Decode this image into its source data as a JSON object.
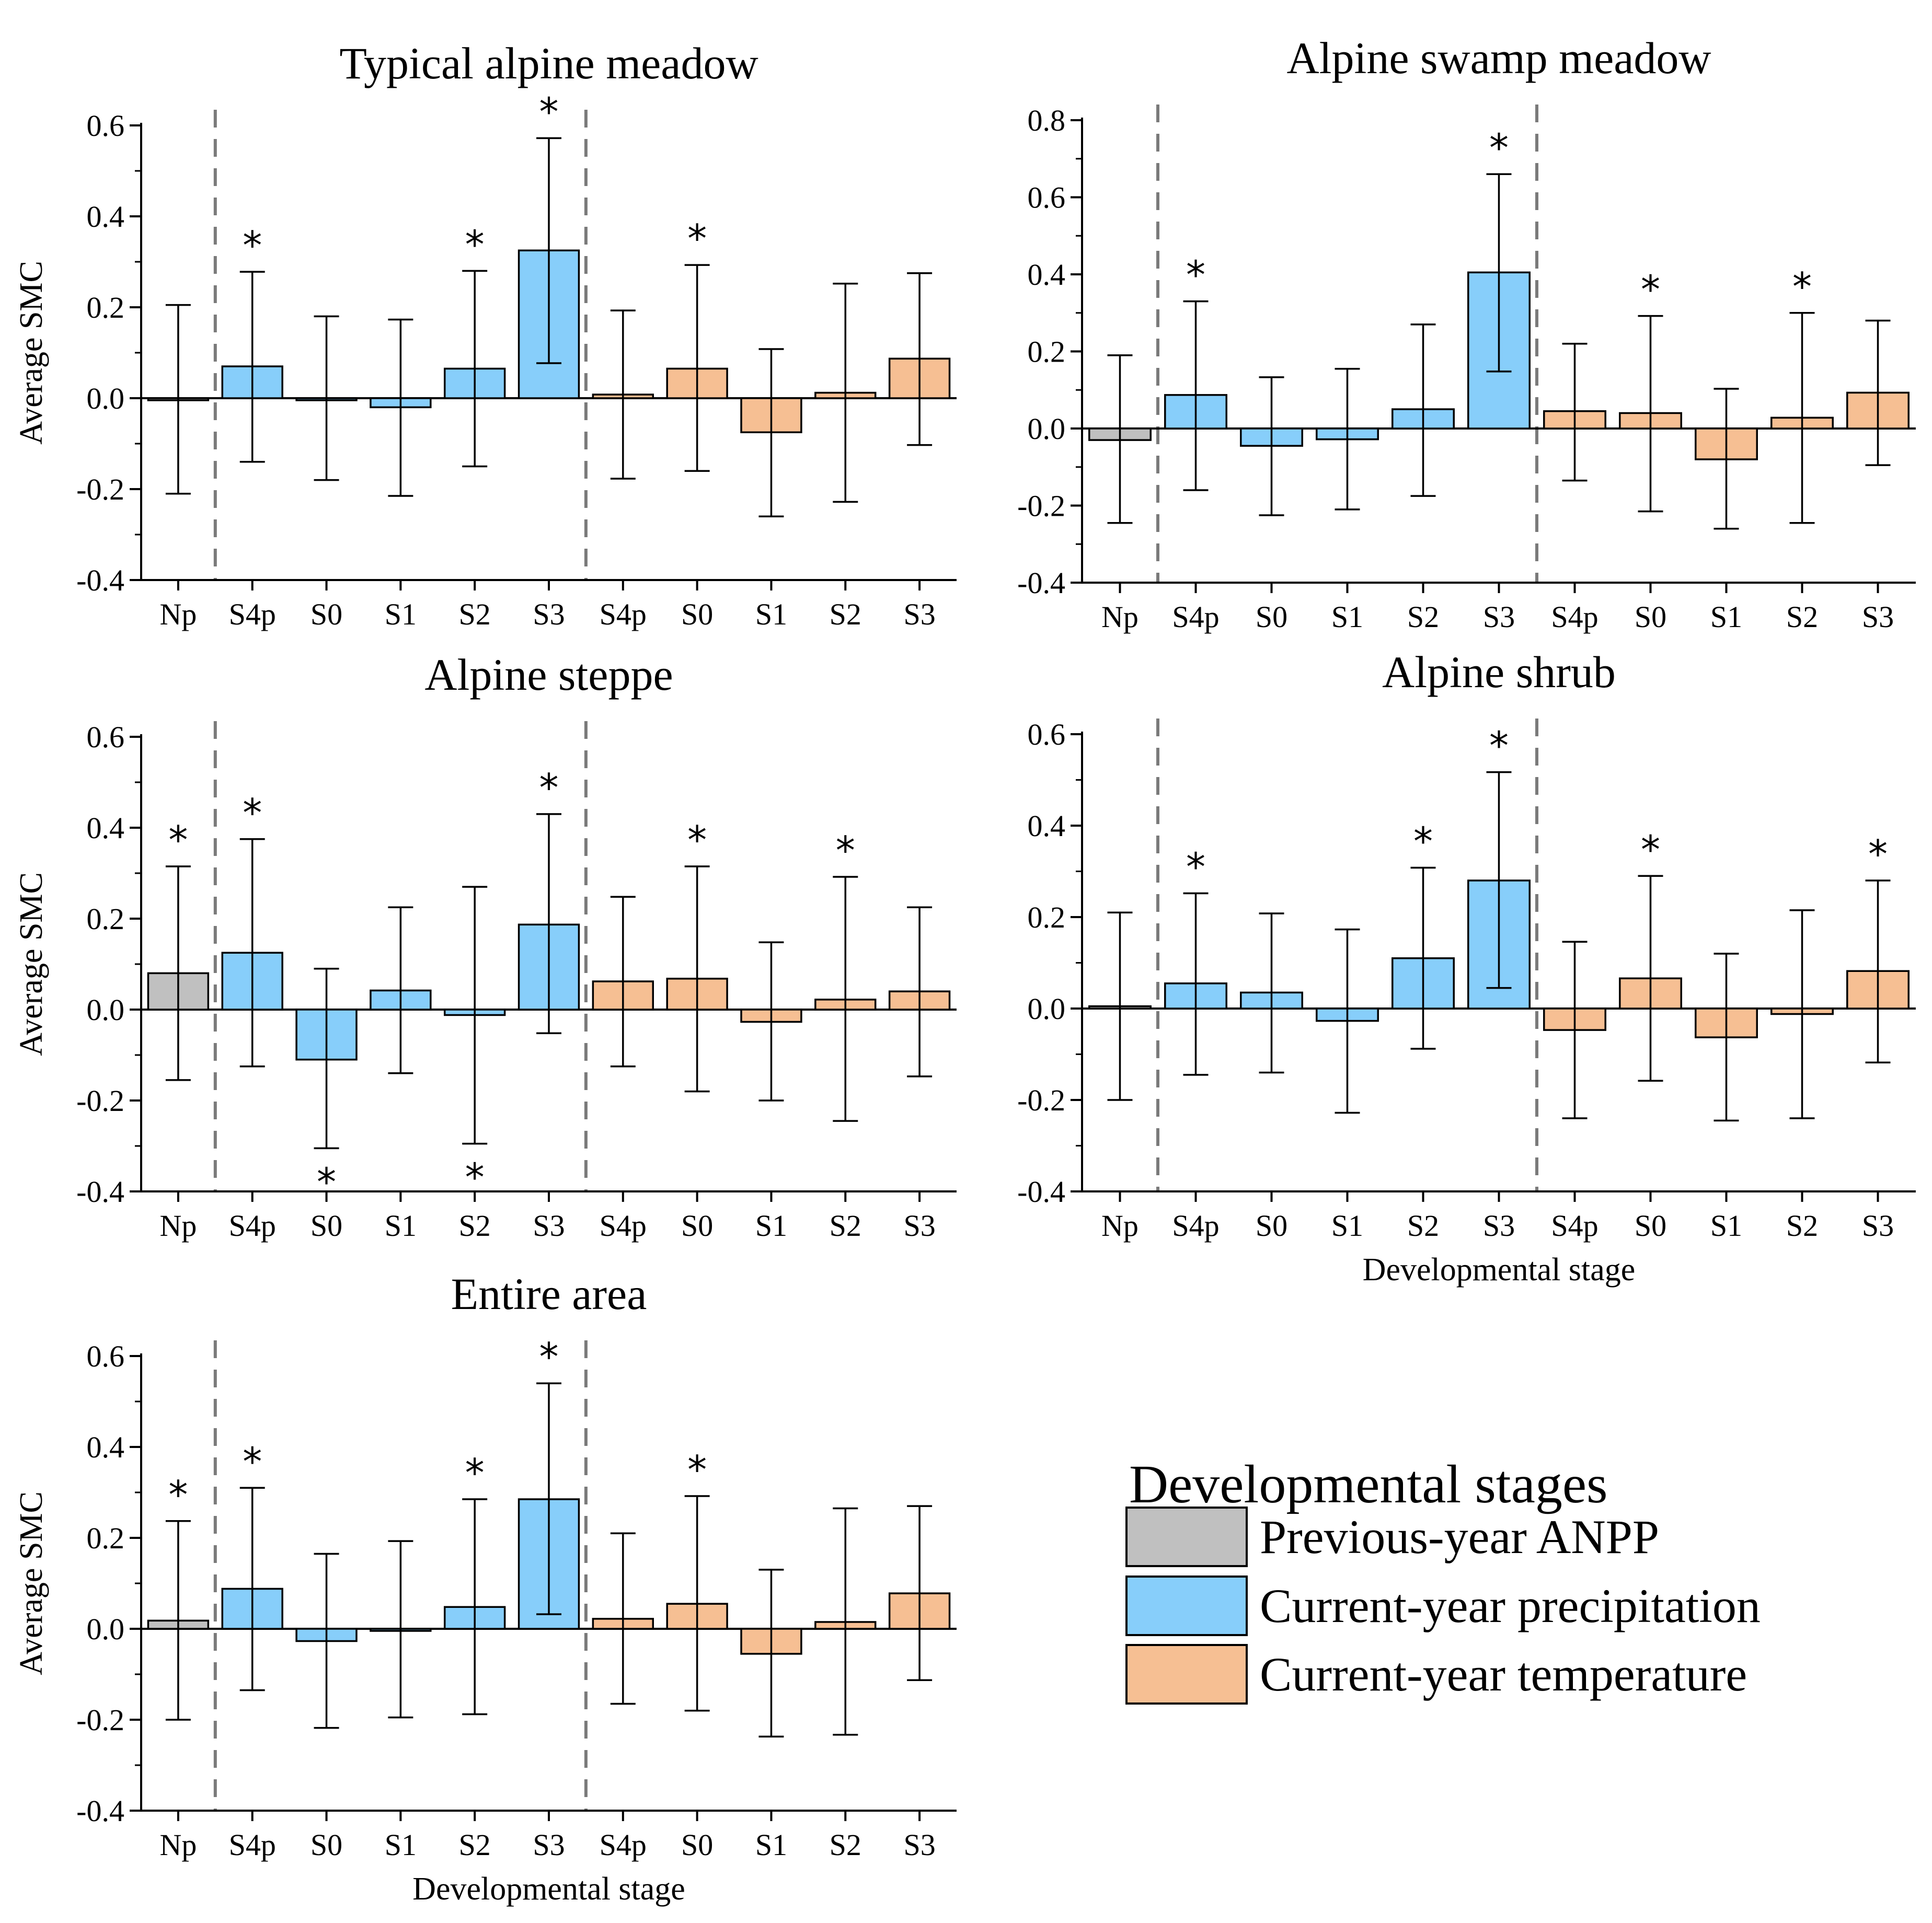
{
  "colors": {
    "previous_year": "#c0c0c0",
    "precipitation": "#87cefa",
    "temperature": "#f6bf93",
    "dashed_line": "#7a7a7a"
  },
  "legend": {
    "title": "Developmental stages",
    "items": [
      {
        "label": "Previous-year ANPP",
        "color": "#c0c0c0"
      },
      {
        "label": "Current-year precipitation",
        "color": "#87cefa"
      },
      {
        "label": "Current-year temperature",
        "color": "#f6bf93"
      }
    ]
  },
  "chart_data": [
    {
      "type": "bar",
      "title": "Typical alpine meadow",
      "ylabel": "Average SMC",
      "xlabel": "",
      "ylim": [
        -0.4,
        0.6
      ],
      "yticks": [
        "-0.4",
        "-0.2",
        "0.0",
        "0.2",
        "0.4",
        "0.6"
      ],
      "categories": [
        "Np",
        "S4p",
        "S0",
        "S1",
        "S2",
        "S3",
        "S4p",
        "S0",
        "S1",
        "S2",
        "S3"
      ],
      "groups": [
        "previous_year",
        "precipitation",
        "precipitation",
        "precipitation",
        "precipitation",
        "precipitation",
        "temperature",
        "temperature",
        "temperature",
        "temperature",
        "temperature"
      ],
      "values": [
        -0.003,
        0.07,
        -0.002,
        -0.02,
        0.065,
        0.325,
        0.008,
        0.065,
        -0.075,
        0.012,
        0.087
      ],
      "err_low": [
        -0.21,
        -0.14,
        -0.18,
        -0.215,
        -0.15,
        0.077,
        -0.177,
        -0.16,
        -0.26,
        -0.228,
        -0.103
      ],
      "err_high": [
        0.205,
        0.278,
        0.18,
        0.173,
        0.28,
        0.572,
        0.193,
        0.293,
        0.108,
        0.252,
        0.275
      ],
      "sig_top": [
        false,
        true,
        false,
        false,
        true,
        true,
        false,
        true,
        false,
        false,
        false
      ],
      "sig_bottom": [
        false,
        false,
        false,
        false,
        false,
        false,
        false,
        false,
        false,
        false,
        false
      ],
      "significance_marker": "*"
    },
    {
      "type": "bar",
      "title": "Alpine swamp meadow",
      "ylabel": "",
      "xlabel": "",
      "ylim": [
        -0.4,
        0.8
      ],
      "yticks": [
        "-0.4",
        "-0.2",
        "0.0",
        "0.2",
        "0.4",
        "0.6",
        "0.8"
      ],
      "categories": [
        "Np",
        "S4p",
        "S0",
        "S1",
        "S2",
        "S3",
        "S4p",
        "S0",
        "S1",
        "S2",
        "S3"
      ],
      "groups": [
        "previous_year",
        "precipitation",
        "precipitation",
        "precipitation",
        "precipitation",
        "precipitation",
        "temperature",
        "temperature",
        "temperature",
        "temperature",
        "temperature"
      ],
      "values": [
        -0.03,
        0.087,
        -0.045,
        -0.028,
        0.05,
        0.405,
        0.045,
        0.04,
        -0.08,
        0.028,
        0.093
      ],
      "err_low": [
        -0.245,
        -0.16,
        -0.225,
        -0.21,
        -0.175,
        0.148,
        -0.135,
        -0.215,
        -0.26,
        -0.245,
        -0.095
      ],
      "err_high": [
        0.19,
        0.33,
        0.133,
        0.155,
        0.27,
        0.66,
        0.22,
        0.292,
        0.103,
        0.3,
        0.28
      ],
      "sig_top": [
        false,
        true,
        false,
        false,
        false,
        true,
        false,
        true,
        false,
        true,
        false
      ],
      "sig_bottom": [
        false,
        false,
        false,
        false,
        false,
        false,
        false,
        false,
        false,
        false,
        false
      ],
      "significance_marker": "*"
    },
    {
      "type": "bar",
      "title": "Alpine steppe",
      "ylabel": "Average SMC",
      "xlabel": "",
      "ylim": [
        -0.4,
        0.6
      ],
      "yticks": [
        "-0.4",
        "-0.2",
        "0.0",
        "0.2",
        "0.4",
        "0.6"
      ],
      "categories": [
        "Np",
        "S4p",
        "S0",
        "S1",
        "S2",
        "S3",
        "S4p",
        "S0",
        "S1",
        "S2",
        "S3"
      ],
      "groups": [
        "previous_year",
        "precipitation",
        "precipitation",
        "precipitation",
        "precipitation",
        "precipitation",
        "temperature",
        "temperature",
        "temperature",
        "temperature",
        "temperature"
      ],
      "values": [
        0.08,
        0.125,
        -0.11,
        0.042,
        -0.012,
        0.187,
        0.062,
        0.068,
        -0.027,
        0.022,
        0.04
      ],
      "err_low": [
        -0.155,
        -0.125,
        -0.305,
        -0.14,
        -0.295,
        -0.052,
        -0.125,
        -0.18,
        -0.2,
        -0.245,
        -0.147
      ],
      "err_high": [
        0.315,
        0.375,
        0.09,
        0.225,
        0.27,
        0.43,
        0.248,
        0.315,
        0.148,
        0.292,
        0.225
      ],
      "sig_top": [
        true,
        true,
        false,
        false,
        false,
        true,
        false,
        true,
        false,
        true,
        false
      ],
      "sig_bottom": [
        false,
        false,
        true,
        false,
        true,
        false,
        false,
        false,
        false,
        false,
        false
      ],
      "significance_marker": "*"
    },
    {
      "type": "bar",
      "title": "Alpine shrub",
      "ylabel": "",
      "xlabel": "Developmental stage",
      "ylim": [
        -0.4,
        0.6
      ],
      "yticks": [
        "-0.4",
        "-0.2",
        "0.0",
        "0.2",
        "0.4",
        "0.6"
      ],
      "categories": [
        "Np",
        "S4p",
        "S0",
        "S1",
        "S2",
        "S3",
        "S4p",
        "S0",
        "S1",
        "S2",
        "S3"
      ],
      "groups": [
        "previous_year",
        "precipitation",
        "precipitation",
        "precipitation",
        "precipitation",
        "precipitation",
        "temperature",
        "temperature",
        "temperature",
        "temperature",
        "temperature"
      ],
      "values": [
        0.005,
        0.055,
        0.035,
        -0.027,
        0.11,
        0.28,
        -0.047,
        0.066,
        -0.063,
        -0.012,
        0.082
      ],
      "err_low": [
        -0.2,
        -0.145,
        -0.14,
        -0.228,
        -0.088,
        0.045,
        -0.24,
        -0.158,
        -0.245,
        -0.24,
        -0.118
      ],
      "err_high": [
        0.21,
        0.252,
        0.208,
        0.173,
        0.308,
        0.517,
        0.146,
        0.29,
        0.12,
        0.215,
        0.28
      ],
      "sig_top": [
        false,
        true,
        false,
        false,
        true,
        true,
        false,
        true,
        false,
        false,
        true
      ],
      "sig_bottom": [
        false,
        false,
        false,
        false,
        false,
        false,
        false,
        false,
        false,
        false,
        false
      ],
      "significance_marker": "*"
    },
    {
      "type": "bar",
      "title": "Entire area",
      "ylabel": "Average SMC",
      "xlabel": "Developmental stage",
      "ylim": [
        -0.4,
        0.6
      ],
      "yticks": [
        "-0.4",
        "-0.2",
        "0.0",
        "0.2",
        "0.4",
        "0.6"
      ],
      "categories": [
        "Np",
        "S4p",
        "S0",
        "S1",
        "S2",
        "S3",
        "S4p",
        "S0",
        "S1",
        "S2",
        "S3"
      ],
      "groups": [
        "previous_year",
        "precipitation",
        "precipitation",
        "precipitation",
        "precipitation",
        "precipitation",
        "temperature",
        "temperature",
        "temperature",
        "temperature",
        "temperature"
      ],
      "values": [
        0.018,
        0.088,
        -0.027,
        -0.003,
        0.048,
        0.285,
        0.022,
        0.055,
        -0.055,
        0.015,
        0.078
      ],
      "err_low": [
        -0.2,
        -0.135,
        -0.218,
        -0.195,
        -0.188,
        0.032,
        -0.165,
        -0.18,
        -0.237,
        -0.233,
        -0.113
      ],
      "err_high": [
        0.237,
        0.31,
        0.165,
        0.193,
        0.285,
        0.54,
        0.21,
        0.292,
        0.13,
        0.265,
        0.27
      ],
      "sig_top": [
        true,
        true,
        false,
        false,
        true,
        true,
        false,
        true,
        false,
        false,
        false
      ],
      "sig_bottom": [
        false,
        false,
        false,
        false,
        false,
        false,
        false,
        false,
        false,
        false,
        false
      ],
      "significance_marker": "*"
    }
  ]
}
